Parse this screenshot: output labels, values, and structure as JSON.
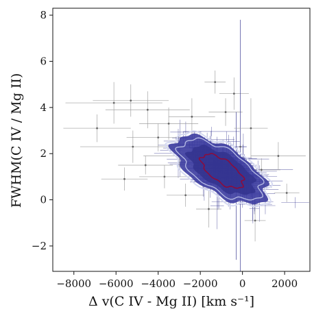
{
  "chart_data": {
    "type": "scatter",
    "xlabel": "Δ v(C IV - Mg II) [km s⁻¹]",
    "ylabel": "FWHM(C IV / Mg II)",
    "xlim": [
      -9000,
      3200
    ],
    "ylim": [
      -3.1,
      8.3
    ],
    "xticks": [
      -8000,
      -6000,
      -4000,
      -2000,
      0,
      2000
    ],
    "yticks": [
      -2,
      0,
      2,
      4,
      6,
      8
    ],
    "xtick_labels": [
      "−8000",
      "−6000",
      "−4000",
      "−2000",
      "0",
      "2000"
    ],
    "ytick_labels": [
      "−2",
      "0",
      "2",
      "4",
      "6",
      "8"
    ],
    "grid": false,
    "colors": {
      "dense_errorbars": "#2b2b8a",
      "outlier_errorbars": "#9a9a9a",
      "density_fill": "#3c3ca0",
      "contour_outer": "#d6daf2",
      "contour_inner": "#8c0c3c"
    },
    "series": [
      {
        "kind": "sparse_points",
        "points": [
          {
            "x": -6100,
            "y": 4.2,
            "xerr": 2300,
            "yerr": 0.9
          },
          {
            "x": -5300,
            "y": 4.3,
            "xerr": 1800,
            "yerr": 0.7
          },
          {
            "x": -4500,
            "y": 3.9,
            "xerr": 2000,
            "yerr": 0.8
          },
          {
            "x": -6900,
            "y": 3.1,
            "xerr": 1600,
            "yerr": 0.6
          },
          {
            "x": -5200,
            "y": 2.3,
            "xerr": 2500,
            "yerr": 0.7
          },
          {
            "x": -4000,
            "y": 2.7,
            "xerr": 1500,
            "yerr": 0.6
          },
          {
            "x": -3500,
            "y": 3.3,
            "xerr": 1400,
            "yerr": 0.7
          },
          {
            "x": -3000,
            "y": 1.9,
            "xerr": 1700,
            "yerr": 0.5
          },
          {
            "x": -4600,
            "y": 1.5,
            "xerr": 1300,
            "yerr": 0.4
          },
          {
            "x": -3700,
            "y": 1.0,
            "xerr": 1200,
            "yerr": 0.5
          },
          {
            "x": -2400,
            "y": 3.6,
            "xerr": 1100,
            "yerr": 0.8
          },
          {
            "x": -1300,
            "y": 5.1,
            "xerr": 500,
            "yerr": 0.5
          },
          {
            "x": -400,
            "y": 4.6,
            "xerr": 700,
            "yerr": 0.7
          },
          {
            "x": -800,
            "y": 3.8,
            "xerr": 800,
            "yerr": 0.6
          },
          {
            "x": -300,
            "y": 0.6,
            "xerr": 400,
            "yerr": 3.2
          },
          {
            "x": -100,
            "y": 2.3,
            "xerr": 300,
            "yerr": 5.5
          },
          {
            "x": 900,
            "y": 1.3,
            "xerr": 900,
            "yerr": 0.5
          },
          {
            "x": 1700,
            "y": 1.9,
            "xerr": 1300,
            "yerr": 0.6
          },
          {
            "x": 2100,
            "y": 0.3,
            "xerr": 600,
            "yerr": 0.4
          },
          {
            "x": 600,
            "y": -0.9,
            "xerr": 500,
            "yerr": 0.9
          },
          {
            "x": -1600,
            "y": -0.4,
            "xerr": 600,
            "yerr": 0.8
          },
          {
            "x": 400,
            "y": 3.1,
            "xerr": 800,
            "yerr": 1.3
          },
          {
            "x": -2700,
            "y": 0.2,
            "xerr": 900,
            "yerr": 0.5
          },
          {
            "x": -5600,
            "y": 0.9,
            "xerr": 1100,
            "yerr": 0.5
          }
        ]
      }
    ]
  }
}
